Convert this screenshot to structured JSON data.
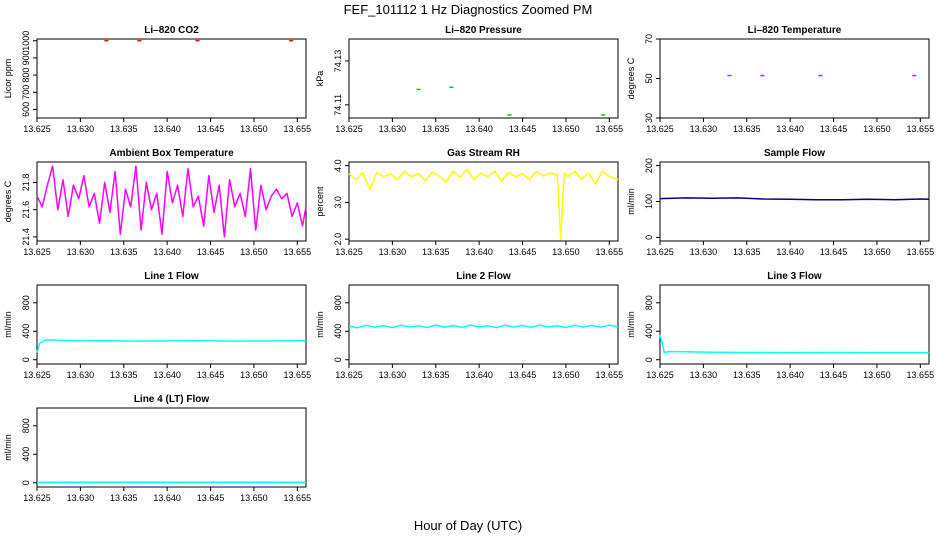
{
  "figure": {
    "title": "FEF_101112  1 Hz Diagnostics Zoomed PM",
    "xlabel": "Hour of Day (UTC)"
  },
  "chart_data": [
    {
      "type": "scatter",
      "title": "Li–820 CO2",
      "xlabel": "",
      "ylabel": "Licor ppm",
      "xlim": [
        13.625,
        13.656
      ],
      "ylim": [
        550,
        1010
      ],
      "xticks": [
        "13.625",
        "13.630",
        "13.635",
        "13.640",
        "13.645",
        "13.650",
        "13.655"
      ],
      "yticks": [
        "600",
        "700",
        "800",
        "900",
        "1000"
      ],
      "color": "#ff0000",
      "series": [
        {
          "x": [
            13.633,
            13.6368,
            13.6435,
            13.6543
          ],
          "y": [
            1000,
            1000,
            1000,
            1000
          ]
        }
      ]
    },
    {
      "type": "scatter",
      "title": "Li–820 Pressure",
      "xlabel": "",
      "ylabel": "kPa",
      "xlim": [
        13.625,
        13.656
      ],
      "ylim": [
        74.104,
        74.14
      ],
      "xticks": [
        "13.625",
        "13.630",
        "13.635",
        "13.640",
        "13.645",
        "13.650",
        "13.655"
      ],
      "yticks": [
        "74.11",
        "74.13"
      ],
      "color": "#00cc00",
      "series": [
        {
          "x": [
            13.633,
            13.6368,
            13.6435,
            13.6543
          ],
          "y": [
            74.117,
            74.118,
            74.1054,
            74.1054
          ]
        }
      ]
    },
    {
      "type": "scatter",
      "title": "Li–820 Temperature",
      "xlabel": "",
      "ylabel": "degrees C",
      "xlim": [
        13.625,
        13.656
      ],
      "ylim": [
        30,
        70
      ],
      "xticks": [
        "13.625",
        "13.630",
        "13.635",
        "13.640",
        "13.645",
        "13.650",
        "13.655"
      ],
      "yticks": [
        "30",
        "50",
        "70"
      ],
      "color": "#ff00ff",
      "series": [
        {
          "x": [
            13.633,
            13.6368,
            13.6435,
            13.6543
          ],
          "y": [
            51.5,
            51.5,
            51.5,
            51.5
          ]
        }
      ]
    },
    {
      "type": "line",
      "title": "Ambient Box Temperature",
      "xlabel": "",
      "ylabel": "degrees C",
      "xlim": [
        13.625,
        13.656
      ],
      "ylim": [
        21.37,
        21.95
      ],
      "xticks": [
        "13.625",
        "13.630",
        "13.635",
        "13.640",
        "13.645",
        "13.650",
        "13.655"
      ],
      "yticks": [
        "21.4",
        "21.6",
        "21.8"
      ],
      "color": "#ff00ff",
      "series": [
        {
          "x": [
            13.625,
            13.6256,
            13.6262,
            13.6268,
            13.6274,
            13.628,
            13.6286,
            13.6292,
            13.6298,
            13.6304,
            13.631,
            13.6316,
            13.6322,
            13.6328,
            13.6334,
            13.634,
            13.6346,
            13.6352,
            13.6358,
            13.6364,
            13.637,
            13.6376,
            13.6382,
            13.6388,
            13.6394,
            13.64,
            13.6406,
            13.6412,
            13.6418,
            13.6424,
            13.643,
            13.6436,
            13.6442,
            13.6448,
            13.6454,
            13.646,
            13.6466,
            13.6472,
            13.6478,
            13.6484,
            13.649,
            13.6496,
            13.6502,
            13.6508,
            13.6514,
            13.652,
            13.6526,
            13.6532,
            13.6538,
            13.6544,
            13.655,
            13.6556,
            13.656
          ],
          "y": [
            21.7,
            21.62,
            21.78,
            21.92,
            21.6,
            21.82,
            21.55,
            21.78,
            21.68,
            21.85,
            21.62,
            21.72,
            21.5,
            21.8,
            21.58,
            21.88,
            21.42,
            21.75,
            21.62,
            21.92,
            21.45,
            21.8,
            21.6,
            21.72,
            21.42,
            21.88,
            21.65,
            21.78,
            21.55,
            21.9,
            21.62,
            21.7,
            21.48,
            21.85,
            21.58,
            21.78,
            21.4,
            21.82,
            21.62,
            21.72,
            21.55,
            21.9,
            21.45,
            21.78,
            21.6,
            21.7,
            21.75,
            21.68,
            21.72,
            21.55,
            21.65,
            21.48,
            21.62
          ]
        }
      ]
    },
    {
      "type": "line",
      "title": "Gas Stream RH",
      "xlabel": "",
      "ylabel": "percent",
      "xlim": [
        13.625,
        13.656
      ],
      "ylim": [
        1.95,
        4.1
      ],
      "xticks": [
        "13.625",
        "13.630",
        "13.635",
        "13.640",
        "13.645",
        "13.650",
        "13.655"
      ],
      "yticks": [
        "2.0",
        "3.0",
        "4.0"
      ],
      "color": "#ffff00",
      "series": [
        {
          "x": [
            13.625,
            13.6258,
            13.6266,
            13.6274,
            13.6282,
            13.629,
            13.6298,
            13.6306,
            13.6314,
            13.6322,
            13.633,
            13.6338,
            13.6346,
            13.6354,
            13.6362,
            13.637,
            13.6378,
            13.6386,
            13.6394,
            13.6402,
            13.641,
            13.6418,
            13.6426,
            13.6434,
            13.6442,
            13.645,
            13.6458,
            13.6466,
            13.6474,
            13.6482,
            13.649,
            13.6494,
            13.6498,
            13.6502,
            13.651,
            13.6518,
            13.6526,
            13.6534,
            13.6542,
            13.655,
            13.656
          ],
          "y": [
            3.78,
            3.62,
            3.8,
            3.35,
            3.82,
            3.7,
            3.78,
            3.62,
            3.85,
            3.7,
            3.78,
            3.6,
            3.82,
            3.72,
            3.55,
            3.85,
            3.68,
            3.9,
            3.62,
            3.8,
            3.7,
            3.85,
            3.58,
            3.82,
            3.7,
            3.78,
            3.62,
            3.85,
            3.72,
            3.8,
            3.75,
            2.0,
            3.8,
            3.7,
            3.85,
            3.62,
            3.8,
            3.5,
            3.85,
            3.7,
            3.62
          ]
        }
      ]
    },
    {
      "type": "line",
      "title": "Sample Flow",
      "xlabel": "",
      "ylabel": "ml/min",
      "xlim": [
        13.625,
        13.656
      ],
      "ylim": [
        -10,
        210
      ],
      "xticks": [
        "13.625",
        "13.630",
        "13.635",
        "13.640",
        "13.645",
        "13.650",
        "13.655"
      ],
      "yticks": [
        "0",
        "100",
        "200"
      ],
      "color": "#00008b",
      "series": [
        {
          "x": [
            13.625,
            13.628,
            13.631,
            13.634,
            13.637,
            13.64,
            13.643,
            13.646,
            13.649,
            13.652,
            13.655,
            13.656
          ],
          "y": [
            108,
            110,
            109,
            110,
            107,
            106,
            105,
            105,
            106,
            105,
            107,
            106
          ]
        }
      ]
    },
    {
      "type": "line",
      "title": "Line 1 Flow",
      "xlabel": "",
      "ylabel": "ml/min",
      "xlim": [
        13.625,
        13.656
      ],
      "ylim": [
        -60,
        1050
      ],
      "xticks": [
        "13.625",
        "13.630",
        "13.635",
        "13.640",
        "13.645",
        "13.650",
        "13.655"
      ],
      "yticks": [
        "0",
        "400",
        "800"
      ],
      "color": "#00ffff",
      "series": [
        {
          "x": [
            13.625,
            13.6253,
            13.6258,
            13.6265,
            13.628,
            13.63,
            13.633,
            13.636,
            13.64,
            13.644,
            13.648,
            13.652,
            13.656
          ],
          "y": [
            100,
            230,
            270,
            280,
            270,
            265,
            268,
            262,
            265,
            268,
            262,
            265,
            268
          ]
        }
      ]
    },
    {
      "type": "line",
      "title": "Line 2 Flow",
      "xlabel": "",
      "ylabel": "ml/min",
      "xlim": [
        13.625,
        13.656
      ],
      "ylim": [
        -60,
        1050
      ],
      "xticks": [
        "13.625",
        "13.630",
        "13.635",
        "13.640",
        "13.645",
        "13.650",
        "13.655"
      ],
      "yticks": [
        "0",
        "400",
        "800"
      ],
      "color": "#00ffff",
      "series": [
        {
          "x": [
            13.625,
            13.626,
            13.627,
            13.628,
            13.629,
            13.63,
            13.631,
            13.632,
            13.633,
            13.634,
            13.635,
            13.636,
            13.637,
            13.638,
            13.639,
            13.64,
            13.641,
            13.642,
            13.643,
            13.644,
            13.645,
            13.646,
            13.647,
            13.648,
            13.649,
            13.65,
            13.651,
            13.652,
            13.653,
            13.654,
            13.655,
            13.656
          ],
          "y": [
            470,
            450,
            485,
            455,
            480,
            450,
            485,
            460,
            478,
            452,
            488,
            458,
            480,
            455,
            486,
            460,
            478,
            452,
            485,
            458,
            482,
            455,
            488,
            460,
            478,
            452,
            485,
            458,
            482,
            455,
            486,
            462
          ]
        }
      ]
    },
    {
      "type": "line",
      "title": "Line 3 Flow",
      "xlabel": "",
      "ylabel": "ml/min",
      "xlim": [
        13.625,
        13.656
      ],
      "ylim": [
        -60,
        1050
      ],
      "xticks": [
        "13.625",
        "13.630",
        "13.635",
        "13.640",
        "13.645",
        "13.650",
        "13.655"
      ],
      "yticks": [
        "0",
        "400",
        "800"
      ],
      "color": "#00ffff",
      "series": [
        {
          "x": [
            13.625,
            13.6252,
            13.6255,
            13.626,
            13.628,
            13.631,
            13.635,
            13.64,
            13.645,
            13.65,
            13.656
          ],
          "y": [
            350,
            260,
            100,
            115,
            112,
            105,
            102,
            100,
            102,
            100,
            100
          ]
        }
      ]
    },
    {
      "type": "line",
      "title": "Line 4 (LT) Flow",
      "xlabel": "",
      "ylabel": "ml/min",
      "xlim": [
        13.625,
        13.656
      ],
      "ylim": [
        -60,
        1050
      ],
      "xticks": [
        "13.625",
        "13.630",
        "13.635",
        "13.640",
        "13.645",
        "13.650",
        "13.655"
      ],
      "yticks": [
        "0",
        "400",
        "800"
      ],
      "color": "#00ffff",
      "series": [
        {
          "x": [
            13.625,
            13.628,
            13.631,
            13.634,
            13.637,
            13.64,
            13.643,
            13.646,
            13.649,
            13.652,
            13.656
          ],
          "y": [
            5,
            8,
            6,
            9,
            6,
            8,
            5,
            8,
            6,
            7,
            5
          ]
        }
      ]
    }
  ]
}
